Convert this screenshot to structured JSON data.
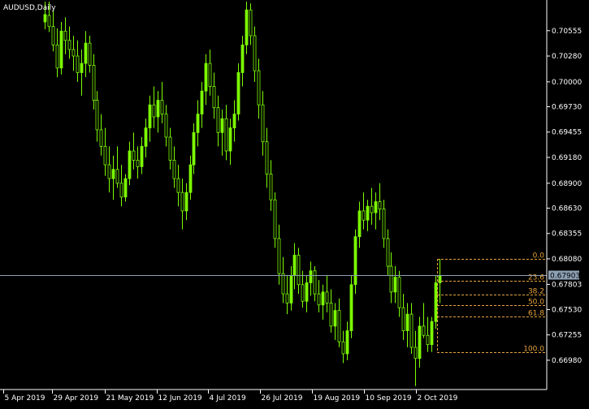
{
  "window": {
    "title": "AUDUSD,Daily"
  },
  "colors": {
    "background": "#000000",
    "bull_candle": "#7CFC00",
    "axis": "#FFFFFF",
    "fib": "#E8A33C",
    "bid_line": "#8CA0B4",
    "bid_box": "#8CA0B4"
  },
  "chart_data": {
    "type": "candlestick",
    "symbol": "AUDUSD",
    "timeframe": "Daily",
    "y_ticks": [
      "0.70555",
      "0.70280",
      "0.70000",
      "0.69730",
      "0.69455",
      "0.69180",
      "0.68900",
      "0.68630",
      "0.68355",
      "0.68080",
      "0.67803",
      "0.67530",
      "0.67255",
      "0.66980"
    ],
    "x_ticks": [
      "5 Apr 2019",
      "29 Apr 2019",
      "21 May 2019",
      "12 Jun 2019",
      "4 Jul 2019",
      "26 Jul 2019",
      "19 Aug 2019",
      "10 Sep 2019",
      "2 Oct 2019"
    ],
    "ylim": [
      0.6668,
      0.7087
    ],
    "current_price": {
      "value": 0.67903,
      "label": "0.67903"
    },
    "fibonacci": {
      "high": 0.6808,
      "low": 0.6707,
      "levels": [
        {
          "ratio": 0.0,
          "label": "0.0"
        },
        {
          "ratio": 0.236,
          "label": "23.6"
        },
        {
          "ratio": 0.382,
          "label": "38.2"
        },
        {
          "ratio": 0.5,
          "label": "50.0"
        },
        {
          "ratio": 0.618,
          "label": "61.8"
        },
        {
          "ratio": 1.0,
          "label": "100.0"
        }
      ]
    },
    "candles": [
      [
        0.7065,
        0.7087,
        0.7057,
        0.7073
      ],
      [
        0.7072,
        0.7087,
        0.7054,
        0.706
      ],
      [
        0.706,
        0.7078,
        0.7033,
        0.704
      ],
      [
        0.704,
        0.7058,
        0.7005,
        0.7015
      ],
      [
        0.7015,
        0.7065,
        0.7008,
        0.7055
      ],
      [
        0.7055,
        0.707,
        0.703,
        0.7045
      ],
      [
        0.7045,
        0.706,
        0.7025,
        0.7035
      ],
      [
        0.7035,
        0.705,
        0.7012,
        0.7028
      ],
      [
        0.7028,
        0.7045,
        0.7,
        0.701
      ],
      [
        0.701,
        0.7035,
        0.6985,
        0.702
      ],
      [
        0.702,
        0.7055,
        0.7005,
        0.7042
      ],
      [
        0.7042,
        0.705,
        0.701,
        0.7018
      ],
      [
        0.7018,
        0.703,
        0.697,
        0.698
      ],
      [
        0.698,
        0.699,
        0.6935,
        0.6948
      ],
      [
        0.6948,
        0.6965,
        0.692,
        0.693
      ],
      [
        0.693,
        0.695,
        0.6898,
        0.691
      ],
      [
        0.691,
        0.693,
        0.688,
        0.6895
      ],
      [
        0.6895,
        0.692,
        0.6872,
        0.6905
      ],
      [
        0.6905,
        0.693,
        0.6885,
        0.689
      ],
      [
        0.689,
        0.691,
        0.6865,
        0.6875
      ],
      [
        0.6875,
        0.69,
        0.687,
        0.6895
      ],
      [
        0.6895,
        0.6935,
        0.6888,
        0.6925
      ],
      [
        0.6925,
        0.6945,
        0.6905,
        0.6915
      ],
      [
        0.6915,
        0.693,
        0.6895,
        0.6908
      ],
      [
        0.6908,
        0.694,
        0.69,
        0.693
      ],
      [
        0.693,
        0.696,
        0.6918,
        0.695
      ],
      [
        0.695,
        0.6985,
        0.6935,
        0.6975
      ],
      [
        0.6975,
        0.6995,
        0.695,
        0.6962
      ],
      [
        0.6962,
        0.699,
        0.6945,
        0.698
      ],
      [
        0.698,
        0.7,
        0.6955,
        0.6965
      ],
      [
        0.6965,
        0.6975,
        0.693,
        0.694
      ],
      [
        0.694,
        0.695,
        0.6905,
        0.6915
      ],
      [
        0.6915,
        0.693,
        0.6885,
        0.6895
      ],
      [
        0.6895,
        0.691,
        0.6865,
        0.688
      ],
      [
        0.688,
        0.6895,
        0.684,
        0.686
      ],
      [
        0.686,
        0.689,
        0.685,
        0.688
      ],
      [
        0.688,
        0.692,
        0.6872,
        0.691
      ],
      [
        0.691,
        0.6955,
        0.69,
        0.6945
      ],
      [
        0.6945,
        0.698,
        0.693,
        0.6965
      ],
      [
        0.6965,
        0.7,
        0.695,
        0.699
      ],
      [
        0.699,
        0.703,
        0.6975,
        0.702
      ],
      [
        0.702,
        0.7035,
        0.6985,
        0.6995
      ],
      [
        0.6995,
        0.701,
        0.696,
        0.6972
      ],
      [
        0.6972,
        0.6985,
        0.693,
        0.6945
      ],
      [
        0.6945,
        0.697,
        0.692,
        0.696
      ],
      [
        0.696,
        0.6975,
        0.6915,
        0.6925
      ],
      [
        0.6925,
        0.696,
        0.691,
        0.695
      ],
      [
        0.695,
        0.698,
        0.6935,
        0.6965
      ],
      [
        0.6965,
        0.702,
        0.6958,
        0.701
      ],
      [
        0.701,
        0.705,
        0.6995,
        0.704
      ],
      [
        0.704,
        0.7087,
        0.703,
        0.7078
      ],
      [
        0.7078,
        0.7085,
        0.704,
        0.705
      ],
      [
        0.705,
        0.706,
        0.7,
        0.7012
      ],
      [
        0.7012,
        0.7025,
        0.696,
        0.6975
      ],
      [
        0.6975,
        0.699,
        0.692,
        0.6935
      ],
      [
        0.6935,
        0.695,
        0.6885,
        0.69
      ],
      [
        0.69,
        0.6915,
        0.686,
        0.6872
      ],
      [
        0.6872,
        0.688,
        0.682,
        0.683
      ],
      [
        0.683,
        0.6845,
        0.678,
        0.6792
      ],
      [
        0.6792,
        0.681,
        0.676,
        0.677
      ],
      [
        0.677,
        0.679,
        0.6748,
        0.676
      ],
      [
        0.676,
        0.68,
        0.6752,
        0.679
      ],
      [
        0.679,
        0.6825,
        0.6775,
        0.6812
      ],
      [
        0.6812,
        0.682,
        0.677,
        0.678
      ],
      [
        0.678,
        0.6795,
        0.6755,
        0.6762
      ],
      [
        0.6762,
        0.679,
        0.675,
        0.6782
      ],
      [
        0.6782,
        0.6805,
        0.6768,
        0.6795
      ],
      [
        0.6795,
        0.68,
        0.6762,
        0.677
      ],
      [
        0.677,
        0.6785,
        0.675,
        0.6758
      ],
      [
        0.6758,
        0.678,
        0.6742,
        0.6772
      ],
      [
        0.6772,
        0.679,
        0.675,
        0.676
      ],
      [
        0.676,
        0.6775,
        0.6728,
        0.6735
      ],
      [
        0.6735,
        0.676,
        0.672,
        0.6752
      ],
      [
        0.6752,
        0.6765,
        0.6712,
        0.6718
      ],
      [
        0.6718,
        0.673,
        0.6695,
        0.6705
      ],
      [
        0.6705,
        0.674,
        0.6698,
        0.673
      ],
      [
        0.673,
        0.679,
        0.6722,
        0.678
      ],
      [
        0.678,
        0.684,
        0.677,
        0.6832
      ],
      [
        0.6832,
        0.687,
        0.682,
        0.686
      ],
      [
        0.686,
        0.688,
        0.684,
        0.685
      ],
      [
        0.685,
        0.6872,
        0.6838,
        0.6865
      ],
      [
        0.6865,
        0.6885,
        0.6845,
        0.6858
      ],
      [
        0.6858,
        0.688,
        0.684,
        0.687
      ],
      [
        0.687,
        0.689,
        0.685,
        0.6862
      ],
      [
        0.6862,
        0.6872,
        0.682,
        0.683
      ],
      [
        0.683,
        0.684,
        0.679,
        0.68
      ],
      [
        0.68,
        0.6815,
        0.676,
        0.6772
      ],
      [
        0.6772,
        0.68,
        0.676,
        0.6788
      ],
      [
        0.6788,
        0.6795,
        0.6745,
        0.6755
      ],
      [
        0.6755,
        0.677,
        0.672,
        0.673
      ],
      [
        0.673,
        0.676,
        0.6712,
        0.6748
      ],
      [
        0.6748,
        0.676,
        0.6705,
        0.6712
      ],
      [
        0.6712,
        0.673,
        0.667,
        0.67
      ],
      [
        0.67,
        0.6745,
        0.669,
        0.6735
      ],
      [
        0.6735,
        0.676,
        0.6722,
        0.6725
      ],
      [
        0.6725,
        0.6745,
        0.6707,
        0.6715
      ],
      [
        0.6715,
        0.6745,
        0.6707,
        0.674
      ],
      [
        0.674,
        0.679,
        0.6732,
        0.6782
      ],
      [
        0.6782,
        0.6808,
        0.676,
        0.679
      ]
    ]
  }
}
